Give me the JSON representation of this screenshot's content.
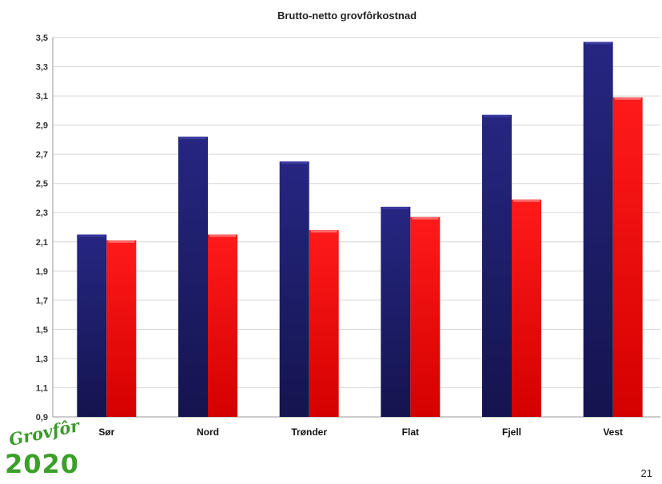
{
  "chart_data": {
    "type": "bar",
    "title": "Brutto-netto grovfôrkostnad",
    "xlabel": "",
    "ylabel": "",
    "categories": [
      "Sør",
      "Nord",
      "Trønder",
      "Flat",
      "Fjell",
      "Vest"
    ],
    "series": [
      {
        "values": [
          2.15,
          2.82,
          2.65,
          2.34,
          2.97,
          3.47
        ]
      },
      {
        "values": [
          2.11,
          2.15,
          2.18,
          2.27,
          2.39,
          3.09
        ]
      }
    ],
    "ylim": [
      0.9,
      3.5
    ],
    "yticks": [
      "0,9",
      "1,1",
      "1,3",
      "1,5",
      "1,7",
      "1,9",
      "2,1",
      "2,3",
      "2,5",
      "2,7",
      "2,9",
      "3,1",
      "3,3",
      "3,5"
    ],
    "grid": true,
    "legend": "none",
    "colors": [
      "#1c1c6e",
      "#ff0a0a"
    ]
  },
  "logo": {
    "script": "Grovfôr",
    "year": "2020"
  },
  "page_number": "21"
}
